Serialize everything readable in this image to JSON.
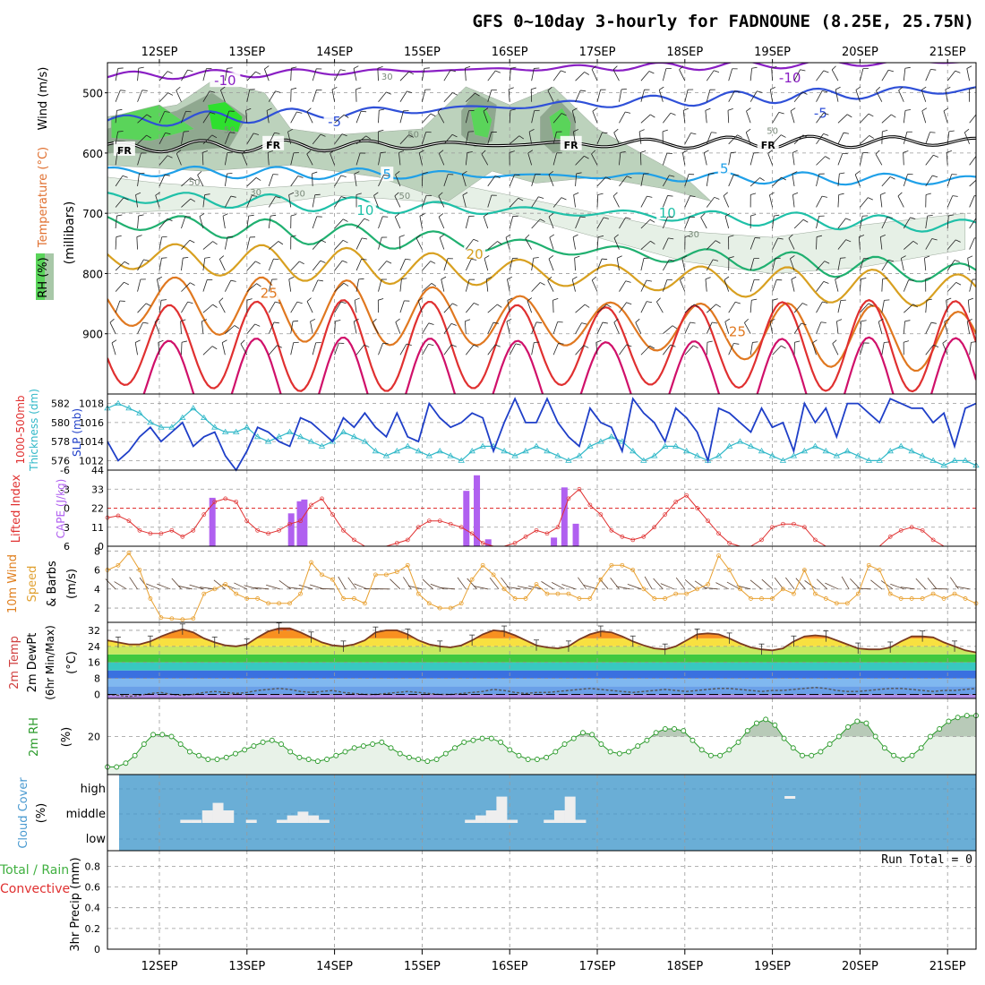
{
  "title": "GFS 0~10day 3-hourly for FADNOUNE (8.25E, 25.75N)",
  "dates": [
    "12SEP",
    "13SEP",
    "14SEP",
    "15SEP",
    "16SEP",
    "17SEP",
    "18SEP",
    "19SEP",
    "20SEP",
    "21SEP"
  ],
  "colors": {
    "rh_light": "#e6f0e6",
    "rh_mid": "#bcd2bc",
    "rh_dark": "#8fa88f",
    "rh_green": "#5ad45a",
    "rh_bright": "#2ee02e",
    "t_m10": "#8a1fc4",
    "t_m5": "#2f50d8",
    "t_fr": "#000000",
    "t_5": "#1fa0e8",
    "t_10": "#1fc0a8",
    "t_15": "#20b070",
    "t_20": "#d8a020",
    "t_25": "#e07820",
    "t_30": "#e03030",
    "t_35": "#d0106a",
    "slp": "#1f3fc8",
    "thick": "#30b8c8",
    "li": "#e03030",
    "cape": "#b060f0",
    "wind": "#e8a030",
    "rh2m": "#2a9a2a",
    "cloud_bg": "#6aaed6",
    "cloud_bar": "#eeeeee"
  },
  "chart_data": [
    {
      "type": "heatmap",
      "title": "GFS 0~10day 3-hourly for FADNOUNE (8.25E, 25.75N)",
      "ylabel_parts": [
        "RH (%)",
        "Temperature (°C)",
        "Wind (m/s)",
        "(millibars)"
      ],
      "yticks": [
        "500",
        "600",
        "700",
        "800",
        "900"
      ],
      "ylim": [
        1000,
        450
      ],
      "isotherm_labels": [
        {
          "label": "-10",
          "t": 0.75
        },
        {
          "label": "-10",
          "t": 7.2
        },
        {
          "label": "-5",
          "t": 2.0
        },
        {
          "label": "-5",
          "t": 7.55
        },
        {
          "label": "FR",
          "t": -0.4
        },
        {
          "label": "FR",
          "t": 1.3
        },
        {
          "label": "FR",
          "t": 4.7
        },
        {
          "label": "FR",
          "t": 6.95
        },
        {
          "label": "5",
          "t": 2.6
        },
        {
          "label": "5",
          "t": 6.45
        },
        {
          "label": "10",
          "t": 2.35
        },
        {
          "label": "10",
          "t": 5.8
        },
        {
          "label": "20",
          "t": 3.6
        },
        {
          "label": "25",
          "t": 1.25
        },
        {
          "label": "25",
          "t": 6.6
        }
      ],
      "rh_labels": [
        {
          "label": "30",
          "t": 2.6,
          "p": 478
        },
        {
          "label": "50",
          "t": 0.8,
          "p": 567
        },
        {
          "label": "50",
          "t": 2.9,
          "p": 574
        },
        {
          "label": "50",
          "t": 0.4,
          "p": 654
        },
        {
          "label": "30",
          "t": 1.1,
          "p": 670
        },
        {
          "label": "30",
          "t": 1.6,
          "p": 672
        },
        {
          "label": "50",
          "t": 2.8,
          "p": 676
        },
        {
          "label": "30",
          "t": 6.1,
          "p": 740
        },
        {
          "label": "50",
          "t": 7.0,
          "p": 568
        }
      ]
    },
    {
      "type": "line",
      "ylabel_left": "1000-500mb Thickness (dm)",
      "ylabel_right": "SLP (mb)",
      "yticks_left": [
        "576",
        "578",
        "580",
        "582"
      ],
      "yticks_right": [
        "1012",
        "1014",
        "1016",
        "1018"
      ],
      "ylim_left": [
        575,
        583
      ],
      "ylim_right": [
        1011,
        1019
      ],
      "series": [
        {
          "name": "SLP",
          "values": [
            1014,
            1012,
            1013,
            1014.5,
            1015.5,
            1014,
            1015,
            1016,
            1013.5,
            1014.5,
            1015,
            1012.5,
            1011,
            1013,
            1015.5,
            1015,
            1014,
            1013.5,
            1016.5,
            1016,
            1015,
            1014,
            1016.5,
            1015.5,
            1017,
            1015.5,
            1014.5,
            1017,
            1014.5,
            1014,
            1018,
            1016.5,
            1015.5,
            1016,
            1017,
            1016.5,
            1013,
            1016,
            1018.5,
            1016,
            1016,
            1018.5,
            1016,
            1014.5,
            1013.5,
            1017.5,
            1016,
            1015.5,
            1013,
            1018.5,
            1017,
            1016,
            1014,
            1017.5,
            1016.5,
            1015,
            1012,
            1017.5,
            1017,
            1016,
            1015,
            1017.5,
            1015.5,
            1016,
            1013,
            1018,
            1016,
            1017.5,
            1014.5,
            1018,
            1018,
            1017,
            1016,
            1018.5,
            1018,
            1017.5,
            1017.5,
            1016,
            1017,
            1013.5,
            1017.5,
            1018
          ]
        },
        {
          "name": "Thickness",
          "values": [
            581.5,
            582,
            581.5,
            581,
            580,
            579.5,
            579.5,
            580.5,
            581.5,
            580.5,
            579.5,
            579,
            579,
            579.5,
            578.5,
            578,
            578.5,
            579,
            578.5,
            578,
            577.5,
            578,
            579,
            578.5,
            578,
            577,
            576.5,
            577,
            577.5,
            577,
            576.5,
            577,
            576.5,
            576,
            577,
            577.5,
            577.5,
            577,
            576.5,
            577,
            577.5,
            577,
            576.5,
            576,
            576.5,
            577.5,
            578,
            578.5,
            578,
            577,
            576,
            576.5,
            577.5,
            577.5,
            577,
            576.5,
            576,
            576.5,
            577.5,
            578,
            577.5,
            577,
            576.5,
            576,
            576.5,
            577,
            577.5,
            577,
            576.5,
            577,
            576.5,
            576,
            576,
            577,
            577.5,
            577,
            576.5,
            576,
            575.5,
            576,
            576,
            575.5
          ]
        }
      ]
    },
    {
      "type": "bar",
      "ylabel_left": "Lifted Index",
      "ylabel_right": "CAPE (J/kg)",
      "yticks_left": [
        "-6",
        "-3",
        "0",
        "3",
        "6"
      ],
      "yticks_right": [
        "0",
        "11",
        "22",
        "33",
        "44"
      ],
      "ylim_left": [
        6,
        -6
      ],
      "ylim_right": [
        0,
        44
      ],
      "li_values": [
        1.5,
        1.2,
        2,
        3.5,
        4,
        4,
        3.5,
        4.5,
        3.5,
        1,
        -1,
        -1.5,
        -1,
        2,
        3.5,
        4,
        3.5,
        2.5,
        2,
        -0.5,
        -1.5,
        1,
        3.5,
        5,
        6,
        6,
        6,
        5.5,
        5,
        3,
        2,
        2,
        2.5,
        3,
        4,
        5.5,
        6,
        6,
        5.5,
        4.5,
        3.5,
        4,
        3,
        -1.5,
        -3,
        -0.5,
        1,
        3.5,
        4.5,
        5,
        4.5,
        3,
        1,
        -1,
        -2,
        0,
        2,
        4,
        5.5,
        6,
        6,
        5,
        3,
        2.5,
        2.5,
        3,
        5,
        6,
        6,
        6,
        6,
        6,
        6,
        4.5,
        3.5,
        3,
        3.5,
        5,
        6,
        6,
        6,
        6
      ],
      "cape_bars": [
        {
          "t": 0.6,
          "v": 28
        },
        {
          "t": 1.5,
          "v": 19
        },
        {
          "t": 1.6,
          "v": 26
        },
        {
          "t": 1.65,
          "v": 27
        },
        {
          "t": 3.5,
          "v": 32
        },
        {
          "t": 3.62,
          "v": 41
        },
        {
          "t": 3.75,
          "v": 4
        },
        {
          "t": 4.5,
          "v": 5
        },
        {
          "t": 4.62,
          "v": 34
        },
        {
          "t": 4.75,
          "v": 13
        }
      ]
    },
    {
      "type": "line",
      "ylabel": "10m Wind Speed & Barbs (m/s)",
      "yticks": [
        "2",
        "4",
        "6",
        "8"
      ],
      "ylim": [
        0.5,
        8.5
      ],
      "values": [
        6,
        6.5,
        7.8,
        6,
        3,
        1,
        0.9,
        0.8,
        0.9,
        3.5,
        4,
        4.5,
        3.5,
        3,
        3,
        2.5,
        2.5,
        2.5,
        3.5,
        6.8,
        5.5,
        5,
        3,
        3,
        2.5,
        5.5,
        5.5,
        5.8,
        6.5,
        3.5,
        2.5,
        2,
        2,
        2.5,
        5,
        6.5,
        5.5,
        4,
        3,
        3,
        4.5,
        3.5,
        3.5,
        3.5,
        3,
        3,
        5,
        6.5,
        6.5,
        6,
        4,
        3,
        3,
        3.5,
        3.5,
        4,
        4.5,
        7.5,
        6,
        4,
        3,
        3,
        3,
        4,
        3.5,
        6,
        3.5,
        3,
        2.5,
        2.5,
        3.5,
        6.5,
        6,
        3.5,
        3,
        3,
        3,
        3.5,
        3,
        3.5,
        3,
        2.5
      ]
    },
    {
      "type": "area",
      "ylabel": "2m Temp 2m DewPt (6hr Min/Max) (°C)",
      "yticks": [
        "0",
        "8",
        "16",
        "24",
        "32"
      ],
      "ylim": [
        -2,
        36
      ],
      "temp": [
        27,
        26,
        25,
        25,
        26.5,
        29,
        31,
        32.5,
        31,
        28,
        26,
        24.5,
        24,
        25,
        28.5,
        31.5,
        33,
        33,
        31,
        28.5,
        26,
        24.5,
        24,
        25,
        27,
        31,
        32,
        32,
        30,
        27,
        25,
        24,
        23.5,
        24.5,
        27,
        30,
        32,
        31.5,
        29.5,
        27,
        24.5,
        23.5,
        23,
        24,
        27.5,
        30,
        31.5,
        31,
        29,
        26.5,
        24.5,
        23,
        22.5,
        24,
        27,
        30,
        30.5,
        30,
        28,
        25.5,
        23.5,
        22.5,
        22,
        23,
        26.5,
        29,
        29.5,
        29,
        27,
        25,
        23,
        22.5,
        22.5,
        23.5,
        26.5,
        29,
        29,
        28.5,
        26,
        24,
        22,
        21
      ],
      "dewpt": [
        0,
        -0.5,
        -1,
        -0.5,
        0.5,
        1,
        0,
        -0.5,
        0,
        1,
        1.5,
        1,
        0.5,
        1,
        2,
        2.5,
        3,
        2.5,
        1.5,
        1,
        1.5,
        2,
        1,
        0.5,
        0,
        0,
        0.5,
        1,
        1.5,
        1,
        0.5,
        0,
        0,
        0.5,
        1,
        1.5,
        2.5,
        2,
        1,
        0.5,
        1,
        1,
        1.5,
        2,
        2.5,
        3,
        2.5,
        2,
        1.5,
        1,
        1.5,
        2,
        2.5,
        2,
        1.5,
        2,
        2.5,
        3,
        3,
        2.5,
        2,
        1.5,
        2,
        2,
        2.5,
        3,
        3.5,
        3,
        2,
        1.5,
        1.5,
        2,
        2.5,
        3,
        3,
        2.5,
        2,
        1.5,
        2,
        2,
        2.5,
        3
      ]
    },
    {
      "type": "area",
      "ylabel": "2m RH (%)",
      "yticks": [
        "20"
      ],
      "ylim": [
        0,
        40
      ],
      "values": [
        4,
        4,
        6,
        10,
        16,
        21,
        21,
        20,
        16,
        12,
        10,
        8,
        8,
        9,
        11,
        13,
        15,
        17,
        18,
        16,
        12,
        9,
        8,
        7,
        8,
        10,
        12,
        14,
        15,
        16,
        17,
        14,
        11,
        9,
        8,
        7,
        8,
        11,
        14,
        17,
        18,
        19,
        19,
        17,
        13,
        10,
        8,
        8,
        9,
        12,
        16,
        19,
        22,
        21,
        16,
        12,
        11,
        12,
        15,
        18,
        22,
        24,
        24,
        23,
        18,
        13,
        10,
        10,
        13,
        17,
        23,
        27,
        29,
        26,
        19,
        14,
        10,
        10,
        12,
        16,
        20,
        25,
        28,
        27,
        20,
        14,
        10,
        8,
        10,
        14,
        20,
        24,
        28,
        30,
        31,
        31
      ]
    },
    {
      "type": "bar",
      "ylabel": "Cloud Cover (%)",
      "yticks": [
        "high",
        "middle",
        "low"
      ],
      "ylim": [
        0,
        1
      ],
      "bars": [
        {
          "t": 0.3,
          "v": 0.05
        },
        {
          "t": 0.42,
          "v": 0.05
        },
        {
          "t": 0.55,
          "v": 0.2
        },
        {
          "t": 0.67,
          "v": 0.32
        },
        {
          "t": 0.79,
          "v": 0.2
        },
        {
          "t": 1.05,
          "v": 0.05
        },
        {
          "t": 1.4,
          "v": 0.05
        },
        {
          "t": 1.52,
          "v": 0.12
        },
        {
          "t": 1.64,
          "v": 0.18
        },
        {
          "t": 1.76,
          "v": 0.12
        },
        {
          "t": 1.88,
          "v": 0.05
        },
        {
          "t": 3.55,
          "v": 0.05
        },
        {
          "t": 3.67,
          "v": 0.12
        },
        {
          "t": 3.79,
          "v": 0.2
        },
        {
          "t": 3.91,
          "v": 0.42
        },
        {
          "t": 4.03,
          "v": 0.05
        },
        {
          "t": 4.45,
          "v": 0.05
        },
        {
          "t": 4.57,
          "v": 0.2
        },
        {
          "t": 4.69,
          "v": 0.42
        },
        {
          "t": 4.81,
          "v": 0.05
        }
      ],
      "high_bars": [
        {
          "t": 7.2,
          "v": 0.03
        }
      ]
    },
    {
      "type": "bar",
      "ylabel": "3hr Precip (mm)",
      "ylabel_left": "Total / Rain",
      "ylabel_left2": "Convective",
      "yticks": [
        "0",
        "0.2",
        "0.4",
        "0.6",
        "0.8"
      ],
      "ylim": [
        0,
        0.95
      ],
      "annotation": "Run Total = 0",
      "values": []
    }
  ]
}
